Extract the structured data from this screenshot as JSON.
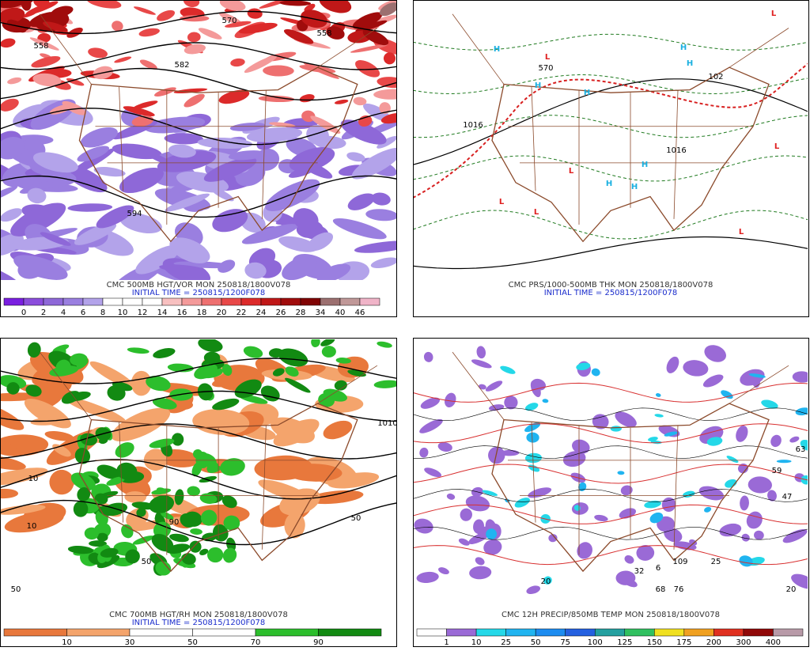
{
  "panels": [
    {
      "caption": "CMC 500MB HGT/VOR MON 250818/1800V078",
      "initial_time": "INITIAL TIME = 250815/1200F078",
      "colorbar": {
        "labels": [
          0,
          2,
          4,
          6,
          8,
          10,
          12,
          14,
          16,
          18,
          20,
          22,
          24,
          26,
          28,
          34,
          40,
          46
        ],
        "colors": [
          "#7a1fe0",
          "#8b4ddc",
          "#8e68d8",
          "#9a7fe0",
          "#b3a3ea",
          "#ffffff",
          "#ffffff",
          "#ffffff",
          "#f8c0c0",
          "#f49a9a",
          "#ee7070",
          "#e84848",
          "#dc2a2a",
          "#c01818",
          "#a00c0c",
          "#800404",
          "#9c7070",
          "#c09898",
          "#f0b4c8"
        ]
      },
      "contour_labels": [
        "558",
        "570",
        "582",
        "594",
        "558"
      ]
    },
    {
      "caption": "CMC PRS/1000-500MB THK MON 250818/1800V078",
      "initial_time": "INITIAL TIME = 250815/1200F078",
      "contour_labels": [
        "570",
        "1016",
        "1016",
        "102"
      ],
      "pressure_centers": [
        "H",
        "H",
        "H",
        "H",
        "H",
        "H",
        "H",
        "H",
        "L",
        "L",
        "L",
        "L",
        "L",
        "L",
        "L"
      ]
    },
    {
      "caption": "CMC 700MB HGT/RH MON 250818/1800V078",
      "initial_time": "INITIAL TIME = 250815/1200F078",
      "colorbar": {
        "labels": [
          10,
          30,
          50,
          70,
          90
        ],
        "colors": [
          "#e8783c",
          "#f4a46c",
          "#ffffff",
          "#ffffff",
          "#2cbe2c",
          "#128a12"
        ]
      },
      "contour_labels": [
        "10",
        "10",
        "50",
        "90",
        "50",
        "50",
        "1010"
      ]
    },
    {
      "caption": "CMC 12H PRECIP/850MB TEMP MON 250818/1800V078",
      "colorbar": {
        "labels": [
          1,
          10,
          25,
          50,
          75,
          100,
          125,
          150,
          175,
          200,
          300,
          400
        ],
        "colors": [
          "#ffffff",
          "#9a6ad6",
          "#24d8e8",
          "#20b4f0",
          "#1c8cf0",
          "#2460e0",
          "#24a0a0",
          "#30c060",
          "#f0e020",
          "#f0a020",
          "#e03020",
          "#900808",
          "#b89aa8"
        ]
      },
      "contour_labels": [
        "109",
        "25",
        "68",
        "76",
        "32",
        "6",
        "47",
        "63",
        "59",
        "20",
        "20"
      ]
    }
  ]
}
